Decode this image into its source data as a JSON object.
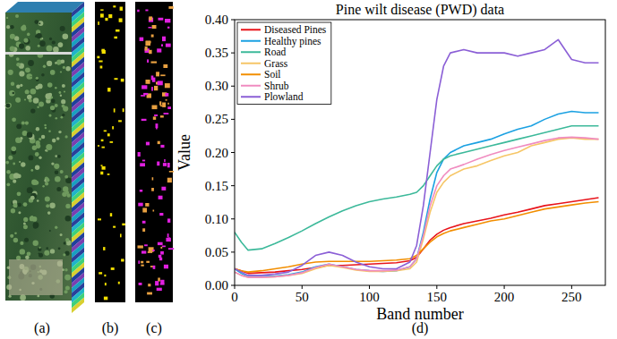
{
  "chart_data": {
    "type": "line",
    "title": "Pine wilt disease (PWD) data",
    "x_label": "Band number",
    "y_label": "Value",
    "x": [
      0,
      5,
      10,
      20,
      30,
      40,
      50,
      60,
      70,
      80,
      90,
      100,
      110,
      120,
      130,
      135,
      140,
      145,
      150,
      155,
      160,
      170,
      180,
      190,
      200,
      210,
      220,
      230,
      240,
      250,
      260,
      270
    ],
    "series": [
      {
        "name": "Diseased Pines",
        "color": "#e8141b",
        "values": [
          0.025,
          0.022,
          0.018,
          0.019,
          0.02,
          0.022,
          0.024,
          0.027,
          0.03,
          0.03,
          0.031,
          0.032,
          0.033,
          0.034,
          0.037,
          0.042,
          0.055,
          0.068,
          0.077,
          0.083,
          0.087,
          0.093,
          0.097,
          0.101,
          0.106,
          0.11,
          0.115,
          0.12,
          0.123,
          0.126,
          0.129,
          0.132
        ]
      },
      {
        "name": "Healthy pines",
        "color": "#1ba1e2",
        "values": [
          0.025,
          0.018,
          0.013,
          0.013,
          0.014,
          0.016,
          0.02,
          0.028,
          0.032,
          0.028,
          0.024,
          0.022,
          0.021,
          0.022,
          0.028,
          0.04,
          0.08,
          0.13,
          0.17,
          0.19,
          0.2,
          0.21,
          0.215,
          0.22,
          0.228,
          0.235,
          0.24,
          0.25,
          0.258,
          0.262,
          0.26,
          0.26
        ]
      },
      {
        "name": "Road",
        "color": "#3cb99a",
        "values": [
          0.08,
          0.065,
          0.053,
          0.055,
          0.063,
          0.072,
          0.082,
          0.093,
          0.103,
          0.112,
          0.12,
          0.126,
          0.13,
          0.133,
          0.137,
          0.14,
          0.15,
          0.165,
          0.18,
          0.19,
          0.195,
          0.2,
          0.205,
          0.21,
          0.215,
          0.22,
          0.225,
          0.23,
          0.235,
          0.24,
          0.24,
          0.24
        ]
      },
      {
        "name": "Grass",
        "color": "#f6c667",
        "values": [
          0.02,
          0.015,
          0.012,
          0.012,
          0.013,
          0.015,
          0.018,
          0.025,
          0.03,
          0.027,
          0.023,
          0.021,
          0.021,
          0.022,
          0.025,
          0.035,
          0.07,
          0.11,
          0.14,
          0.155,
          0.165,
          0.175,
          0.18,
          0.188,
          0.195,
          0.2,
          0.21,
          0.215,
          0.22,
          0.222,
          0.22,
          0.22
        ]
      },
      {
        "name": "Soil",
        "color": "#f28e00",
        "values": [
          0.025,
          0.022,
          0.02,
          0.022,
          0.025,
          0.028,
          0.032,
          0.035,
          0.036,
          0.036,
          0.036,
          0.036,
          0.037,
          0.038,
          0.04,
          0.045,
          0.055,
          0.065,
          0.073,
          0.078,
          0.082,
          0.087,
          0.092,
          0.097,
          0.1,
          0.105,
          0.11,
          0.115,
          0.118,
          0.121,
          0.124,
          0.126
        ]
      },
      {
        "name": "Shrub",
        "color": "#f08cc0",
        "values": [
          0.02,
          0.015,
          0.012,
          0.012,
          0.013,
          0.015,
          0.019,
          0.027,
          0.032,
          0.028,
          0.024,
          0.022,
          0.022,
          0.023,
          0.028,
          0.04,
          0.075,
          0.12,
          0.15,
          0.165,
          0.175,
          0.182,
          0.19,
          0.197,
          0.203,
          0.208,
          0.213,
          0.218,
          0.222,
          0.223,
          0.222,
          0.22
        ]
      },
      {
        "name": "Plowland",
        "color": "#8b5fd6",
        "values": [
          0.025,
          0.02,
          0.015,
          0.015,
          0.017,
          0.02,
          0.03,
          0.045,
          0.05,
          0.045,
          0.035,
          0.028,
          0.025,
          0.025,
          0.035,
          0.06,
          0.12,
          0.2,
          0.28,
          0.33,
          0.35,
          0.355,
          0.35,
          0.35,
          0.35,
          0.345,
          0.35,
          0.355,
          0.37,
          0.34,
          0.335,
          0.335
        ]
      }
    ],
    "xlim": [
      0,
      275
    ],
    "ylim": [
      0,
      0.4
    ],
    "xticks": [
      0,
      50,
      100,
      150,
      200,
      250
    ],
    "yticks": [
      {
        "value": 0,
        "label": "0.00"
      },
      0.05,
      {
        "value": 0.1,
        "label": "0.10"
      },
      0.15,
      {
        "value": 0.2,
        "label": "0.20"
      },
      0.25,
      {
        "value": 0.3,
        "label": "0.30"
      },
      0.35,
      {
        "value": 0.4,
        "label": "0.40"
      }
    ],
    "grid": false,
    "legend": "upper left"
  },
  "panels": {
    "labels": [
      "(a)",
      "(b)",
      "(c)",
      "(d)"
    ]
  }
}
